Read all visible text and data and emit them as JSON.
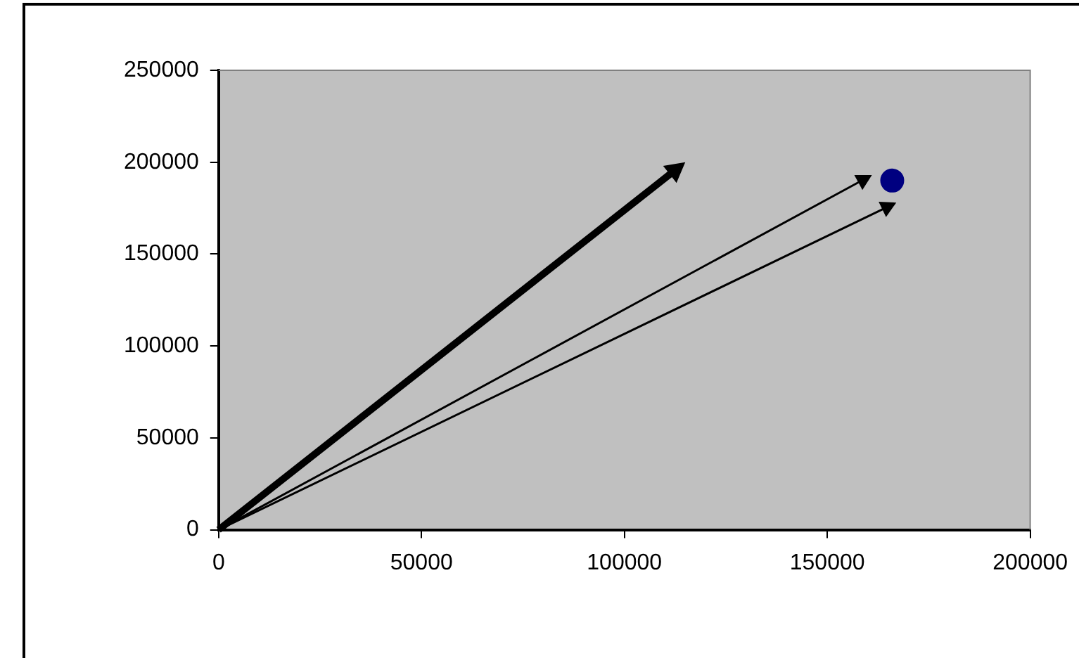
{
  "chart_data": {
    "type": "scatter",
    "series": [
      {
        "color": "#000080",
        "x": [
          166000
        ],
        "values": [
          190000
        ]
      }
    ],
    "xlim": [
      0,
      200000
    ],
    "xticks": [
      0,
      50000,
      100000,
      150000,
      200000
    ],
    "ylim": [
      0,
      250000
    ],
    "yticks": [
      0,
      50000,
      100000,
      150000,
      200000,
      250000
    ],
    "grid": false,
    "legend": false,
    "marker": "circle"
  }
}
